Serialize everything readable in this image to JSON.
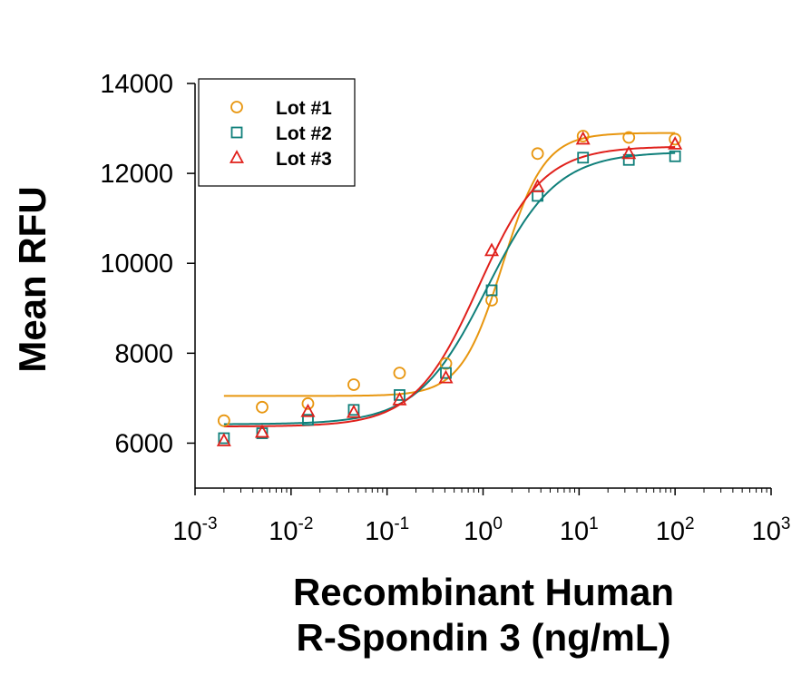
{
  "chart_data": {
    "type": "scatter",
    "title": "",
    "xlabel_lines": [
      "Recombinant Human",
      "R-Spondin 3 (ng/mL)"
    ],
    "ylabel": "Mean RFU",
    "x_scale": "log",
    "xlim": [
      0.001,
      1000
    ],
    "ylim": [
      5000,
      14000
    ],
    "y_ticks": [
      6000,
      8000,
      10000,
      12000,
      14000
    ],
    "y_tick_labels": [
      "6000",
      "8000",
      "10000",
      "12000",
      "14000"
    ],
    "x_ticks": [
      {
        "value": 0.001,
        "base": "10",
        "exp": "-3"
      },
      {
        "value": 0.01,
        "base": "10",
        "exp": "-2"
      },
      {
        "value": 0.1,
        "base": "10",
        "exp": "-1"
      },
      {
        "value": 1,
        "base": "10",
        "exp": "0"
      },
      {
        "value": 10,
        "base": "10",
        "exp": "1"
      },
      {
        "value": 100,
        "base": "10",
        "exp": "2"
      },
      {
        "value": 1000,
        "base": "10",
        "exp": "3"
      }
    ],
    "grid": false,
    "legend_position": "top-left",
    "x": [
      0.002,
      0.005,
      0.015,
      0.045,
      0.135,
      0.41,
      1.23,
      3.7,
      11,
      33,
      100
    ],
    "series": [
      {
        "name": "Lot #1",
        "marker": "circle",
        "color": "#E8960F",
        "values": [
          6500,
          6800,
          6880,
          7300,
          7560,
          7770,
          9180,
          12440,
          12830,
          12800,
          12760
        ],
        "fit": {
          "bottom": 7050,
          "top": 12900,
          "ec50": 1.6,
          "hill": 2.0
        }
      },
      {
        "name": "Lot #2",
        "marker": "square",
        "color": "#0F7F7A",
        "values": [
          6110,
          6220,
          6520,
          6740,
          7070,
          7560,
          9400,
          11500,
          12350,
          12300,
          12380
        ],
        "fit": {
          "bottom": 6420,
          "top": 12480,
          "ec50": 1.1,
          "hill": 1.2
        }
      },
      {
        "name": "Lot #3",
        "marker": "triangle",
        "color": "#E0201B",
        "values": [
          6050,
          6240,
          6700,
          6680,
          6960,
          7450,
          10280,
          11700,
          12760,
          12440,
          12650
        ],
        "fit": {
          "bottom": 6370,
          "top": 12600,
          "ec50": 0.9,
          "hill": 1.3
        }
      }
    ]
  }
}
